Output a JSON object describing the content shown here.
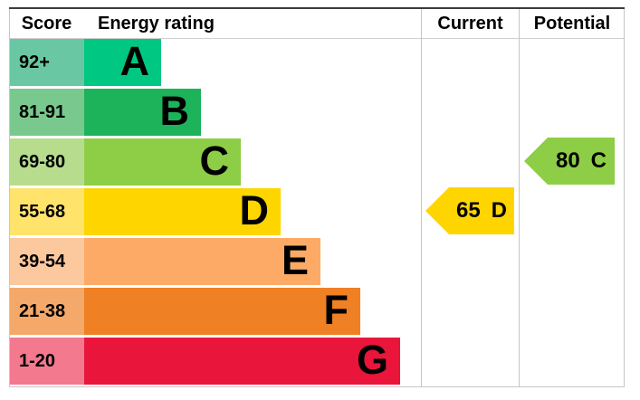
{
  "header": {
    "score_label": "Score",
    "energy_rating_label": "Energy rating",
    "current_label": "Current",
    "potential_label": "Potential"
  },
  "chart_data": {
    "type": "bar",
    "title": "Energy rating",
    "description": "EPC energy efficiency rating bands with current and potential scores",
    "bands": [
      {
        "letter": "A",
        "score_range": "92+",
        "bar_color": "#00c781",
        "score_cell_color": "#69c8a3"
      },
      {
        "letter": "B",
        "score_range": "81-91",
        "bar_color": "#1cb35b",
        "score_cell_color": "#79c98e"
      },
      {
        "letter": "C",
        "score_range": "69-80",
        "bar_color": "#8dce46",
        "score_cell_color": "#b7dc8d"
      },
      {
        "letter": "D",
        "score_range": "55-68",
        "bar_color": "#ffd500",
        "score_cell_color": "#ffe36b"
      },
      {
        "letter": "E",
        "score_range": "39-54",
        "bar_color": "#fcaa65",
        "score_cell_color": "#fcc89e"
      },
      {
        "letter": "F",
        "score_range": "21-38",
        "bar_color": "#ef8023",
        "score_cell_color": "#f4a86a"
      },
      {
        "letter": "G",
        "score_range": "1-20",
        "bar_color": "#e9153b",
        "score_cell_color": "#f3798f"
      }
    ],
    "current": {
      "score": "65",
      "band": "D",
      "color": "#ffd500"
    },
    "potential": {
      "score": "80",
      "band": "C",
      "color": "#8dce46"
    }
  }
}
